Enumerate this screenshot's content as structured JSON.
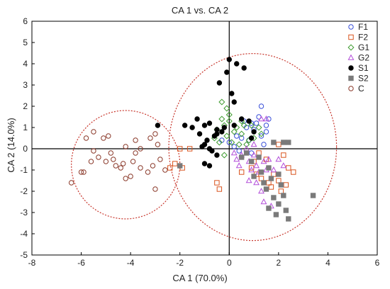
{
  "chart_data": {
    "type": "scatter",
    "title": "CA 1 vs. CA 2",
    "xlabel": "CA 1 (70.0%)",
    "ylabel": "CA 2 (14.0%)",
    "xlim": [
      -8,
      6
    ],
    "ylim": [
      -5,
      6
    ],
    "xticks": [
      "-8",
      "-6",
      "-4",
      "-2",
      "0",
      "2",
      "4",
      "6"
    ],
    "yticks": [
      "-5",
      "-4",
      "-3",
      "-2",
      "-1",
      "0",
      "1",
      "2",
      "3",
      "4",
      "5",
      "6"
    ],
    "grid": false,
    "legend_position": "top-right",
    "reference_lines": {
      "x": 0,
      "y": 0
    },
    "ellipses": [
      {
        "cx": -4.2,
        "cy": -0.75,
        "rx": 2.2,
        "ry": 2.55,
        "color": "#c8372d",
        "style": "dotted"
      },
      {
        "cx": 0.95,
        "cy": 0.08,
        "rx": 3.4,
        "ry": 4.4,
        "color": "#c8372d",
        "style": "dotted"
      }
    ],
    "series": [
      {
        "name": "F1",
        "marker": "circle-open",
        "color": "#3a50d9",
        "points": [
          [
            0.2,
            0.1
          ],
          [
            0.5,
            0.5
          ],
          [
            0.9,
            1.2
          ],
          [
            1.1,
            1.2
          ],
          [
            1.3,
            2.0
          ],
          [
            1.5,
            0.8
          ],
          [
            0.7,
            1.0
          ],
          [
            0.3,
            0.6
          ],
          [
            0.0,
            0.3
          ],
          [
            1.2,
            1.5
          ],
          [
            0.9,
            -0.2
          ],
          [
            1.4,
            0.2
          ],
          [
            0.6,
            1.3
          ],
          [
            1.0,
            0.9
          ],
          [
            -0.3,
            0.4
          ],
          [
            1.6,
            1.4
          ],
          [
            0.8,
            0.4
          ],
          [
            1.3,
            0.6
          ],
          [
            1.5,
            1.1
          ],
          [
            0.4,
            -0.1
          ]
        ]
      },
      {
        "name": "F2",
        "marker": "square-open",
        "color": "#d9541e",
        "points": [
          [
            -2.0,
            0.0
          ],
          [
            -1.6,
            0.0
          ],
          [
            -2.2,
            -0.7
          ],
          [
            -2.4,
            -0.9
          ],
          [
            -1.9,
            -0.9
          ],
          [
            -0.5,
            -1.6
          ],
          [
            -0.4,
            -1.9
          ],
          [
            0.5,
            -1.1
          ],
          [
            0.9,
            -0.9
          ],
          [
            1.1,
            -1.2
          ],
          [
            1.3,
            -1.4
          ],
          [
            1.6,
            -1.6
          ],
          [
            1.8,
            -1.2
          ],
          [
            2.0,
            -1.5
          ],
          [
            2.2,
            -0.3
          ],
          [
            2.4,
            -0.9
          ],
          [
            2.6,
            -1.1
          ],
          [
            2.1,
            -2.0
          ],
          [
            1.7,
            -1.8
          ],
          [
            2.3,
            -1.7
          ],
          [
            1.5,
            -0.5
          ],
          [
            2.0,
            0.2
          ],
          [
            1.2,
            -0.2
          ],
          [
            1.0,
            -0.6
          ]
        ]
      },
      {
        "name": "G1",
        "marker": "diamond-open",
        "color": "#3d9a2e",
        "points": [
          [
            -0.3,
            2.2
          ],
          [
            -0.1,
            1.9
          ],
          [
            0.0,
            1.3
          ],
          [
            -0.2,
            1.1
          ],
          [
            -0.5,
            0.9
          ],
          [
            0.3,
            1.0
          ],
          [
            0.6,
            1.1
          ],
          [
            0.5,
            0.7
          ],
          [
            -0.1,
            0.6
          ],
          [
            0.1,
            0.3
          ],
          [
            0.8,
            0.4
          ],
          [
            1.0,
            0.5
          ],
          [
            1.2,
            1.0
          ],
          [
            0.4,
            0.2
          ],
          [
            -0.4,
            0.3
          ],
          [
            -0.6,
            0.5
          ],
          [
            0.2,
            0.8
          ],
          [
            0.7,
            0.2
          ],
          [
            1.3,
            0.7
          ],
          [
            -0.2,
            -0.3
          ],
          [
            0.0,
            1.6
          ],
          [
            -0.3,
            1.4
          ],
          [
            0.5,
            1.3
          ],
          [
            0.9,
            1.1
          ]
        ]
      },
      {
        "name": "G2",
        "marker": "triangle-open",
        "color": "#b34ed9",
        "points": [
          [
            0.2,
            -0.2
          ],
          [
            0.5,
            -0.3
          ],
          [
            0.8,
            -0.6
          ],
          [
            1.0,
            -0.3
          ],
          [
            1.1,
            -0.8
          ],
          [
            0.4,
            -0.8
          ],
          [
            0.9,
            -1.0
          ],
          [
            1.2,
            -1.1
          ],
          [
            1.4,
            -0.6
          ],
          [
            1.6,
            -0.5
          ],
          [
            1.5,
            -1.0
          ],
          [
            1.8,
            -1.0
          ],
          [
            2.0,
            -0.5
          ],
          [
            2.2,
            -0.8
          ],
          [
            1.3,
            -2.0
          ],
          [
            1.4,
            -2.5
          ],
          [
            1.7,
            -2.7
          ],
          [
            1.1,
            -1.6
          ],
          [
            0.8,
            -1.5
          ],
          [
            1.3,
            1.4
          ],
          [
            1.5,
            1.4
          ],
          [
            0.7,
            0.0
          ],
          [
            1.0,
            0.2
          ],
          [
            0.3,
            -0.5
          ]
        ]
      },
      {
        "name": "S1",
        "marker": "circle-filled",
        "color": "#000000",
        "points": [
          [
            0.0,
            4.2
          ],
          [
            -0.1,
            3.6
          ],
          [
            0.3,
            4.0
          ],
          [
            0.6,
            3.8
          ],
          [
            -0.4,
            3.1
          ],
          [
            0.1,
            2.6
          ],
          [
            0.2,
            2.2
          ],
          [
            -1.3,
            1.4
          ],
          [
            -1.0,
            1.1
          ],
          [
            -0.8,
            1.2
          ],
          [
            -1.5,
            1.0
          ],
          [
            -1.8,
            1.1
          ],
          [
            -2.9,
            1.1
          ],
          [
            -0.5,
            0.9
          ],
          [
            -1.2,
            0.7
          ],
          [
            -0.6,
            0.6
          ],
          [
            -0.3,
            0.8
          ],
          [
            -0.9,
            0.4
          ],
          [
            -1.0,
            0.2
          ],
          [
            -1.1,
            0.1
          ],
          [
            -0.8,
            0.0
          ],
          [
            -0.7,
            -0.1
          ],
          [
            -0.5,
            -0.3
          ],
          [
            -1.0,
            -0.7
          ],
          [
            -0.8,
            -0.8
          ],
          [
            0.2,
            1.1
          ],
          [
            0.5,
            1.4
          ],
          [
            -0.2,
            1.0
          ],
          [
            0.8,
            1.3
          ],
          [
            0.9,
            0.5
          ],
          [
            -0.5,
            0.7
          ],
          [
            1.0,
            0.8
          ]
        ]
      },
      {
        "name": "S2",
        "marker": "square-filled",
        "color": "#7a7a7a",
        "points": [
          [
            -2.0,
            -0.8
          ],
          [
            0.5,
            -0.4
          ],
          [
            0.9,
            -0.6
          ],
          [
            1.3,
            -1.1
          ],
          [
            1.6,
            -0.9
          ],
          [
            1.7,
            -1.4
          ],
          [
            2.0,
            -1.2
          ],
          [
            2.2,
            0.3
          ],
          [
            2.4,
            0.3
          ],
          [
            1.8,
            0.3
          ],
          [
            1.5,
            -1.9
          ],
          [
            1.8,
            -2.3
          ],
          [
            2.0,
            -2.6
          ],
          [
            1.6,
            -2.8
          ],
          [
            1.9,
            -3.1
          ],
          [
            2.3,
            -2.9
          ],
          [
            2.4,
            -3.3
          ],
          [
            3.4,
            -2.2
          ],
          [
            2.2,
            -2.2
          ],
          [
            1.2,
            -0.4
          ],
          [
            1.0,
            -1.3
          ],
          [
            2.1,
            -1.7
          ],
          [
            1.4,
            -1.6
          ],
          [
            0.7,
            -0.2
          ]
        ]
      },
      {
        "name": "C",
        "marker": "circle-open",
        "color": "#8b3a2b",
        "points": [
          [
            -6.4,
            -1.6
          ],
          [
            -6.0,
            -1.1
          ],
          [
            -5.9,
            -1.1
          ],
          [
            -5.6,
            -0.6
          ],
          [
            -5.3,
            -0.4
          ],
          [
            -5.5,
            -0.1
          ],
          [
            -5.8,
            0.5
          ],
          [
            -5.5,
            0.8
          ],
          [
            -5.1,
            0.5
          ],
          [
            -4.9,
            0.6
          ],
          [
            -4.8,
            -0.2
          ],
          [
            -5.0,
            -0.6
          ],
          [
            -4.7,
            -0.5
          ],
          [
            -4.6,
            -0.8
          ],
          [
            -4.3,
            -0.7
          ],
          [
            -4.4,
            -0.9
          ],
          [
            -4.2,
            0.1
          ],
          [
            -3.8,
            0.4
          ],
          [
            -3.6,
            0.0
          ],
          [
            -3.8,
            -0.2
          ],
          [
            -3.9,
            -0.6
          ],
          [
            -4.0,
            -1.3
          ],
          [
            -3.6,
            -0.9
          ],
          [
            -3.2,
            0.5
          ],
          [
            -3.0,
            0.7
          ],
          [
            -3.3,
            -1.1
          ],
          [
            -3.1,
            -0.8
          ],
          [
            -2.8,
            -0.5
          ],
          [
            -3.0,
            -1.9
          ],
          [
            -2.6,
            -1.0
          ],
          [
            -4.2,
            -1.4
          ],
          [
            -2.9,
            0.2
          ]
        ]
      }
    ]
  }
}
